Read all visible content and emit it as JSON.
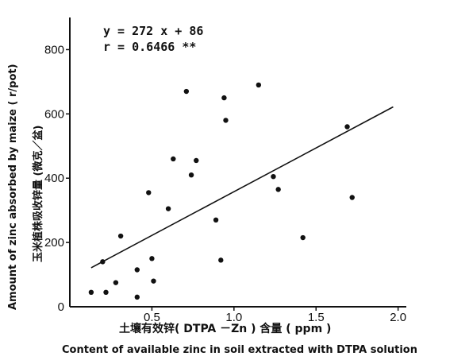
{
  "chart_data": {
    "type": "scatter",
    "title": "",
    "xlabel_cn": "土壤有效锌( DTPA －Zn ) 含量 ( ppm )",
    "xlabel_en": "Content of available zinc in soil extracted with DTPA solution",
    "ylabel_en": "Amount of zinc absorbed by maize ( r/pot)",
    "ylabel_cn": "玉米植株吸收锌量 (微克／盆)",
    "xlim": [
      0.0,
      2.05
    ],
    "ylim": [
      0,
      900
    ],
    "x_ticks": [
      0.5,
      1.0,
      1.5,
      2.0
    ],
    "x_tick_labels": [
      "0.5",
      "1.0",
      "1.5",
      "2.0"
    ],
    "y_ticks": [
      0,
      200,
      400,
      600,
      800
    ],
    "y_tick_labels": [
      "0",
      "200",
      "400",
      "600",
      "800"
    ],
    "equation_line1": "y = 272 x  + 86",
    "equation_line2": "r = 0.6466 **",
    "regression": {
      "slope": 272,
      "intercept": 86,
      "x_range": [
        0.13,
        1.97
      ]
    },
    "points": [
      {
        "x": 0.13,
        "y": 45
      },
      {
        "x": 0.2,
        "y": 140
      },
      {
        "x": 0.22,
        "y": 45
      },
      {
        "x": 0.28,
        "y": 75
      },
      {
        "x": 0.31,
        "y": 220
      },
      {
        "x": 0.41,
        "y": 115
      },
      {
        "x": 0.41,
        "y": 30
      },
      {
        "x": 0.48,
        "y": 355
      },
      {
        "x": 0.5,
        "y": 150
      },
      {
        "x": 0.51,
        "y": 80
      },
      {
        "x": 0.6,
        "y": 305
      },
      {
        "x": 0.63,
        "y": 460
      },
      {
        "x": 0.71,
        "y": 670
      },
      {
        "x": 0.74,
        "y": 410
      },
      {
        "x": 0.77,
        "y": 455
      },
      {
        "x": 0.89,
        "y": 270
      },
      {
        "x": 0.92,
        "y": 145
      },
      {
        "x": 0.94,
        "y": 650
      },
      {
        "x": 0.95,
        "y": 580
      },
      {
        "x": 1.15,
        "y": 690
      },
      {
        "x": 1.24,
        "y": 405
      },
      {
        "x": 1.27,
        "y": 365
      },
      {
        "x": 1.42,
        "y": 215
      },
      {
        "x": 1.69,
        "y": 560
      },
      {
        "x": 1.72,
        "y": 340
      }
    ],
    "grid": false,
    "legend": "none"
  }
}
